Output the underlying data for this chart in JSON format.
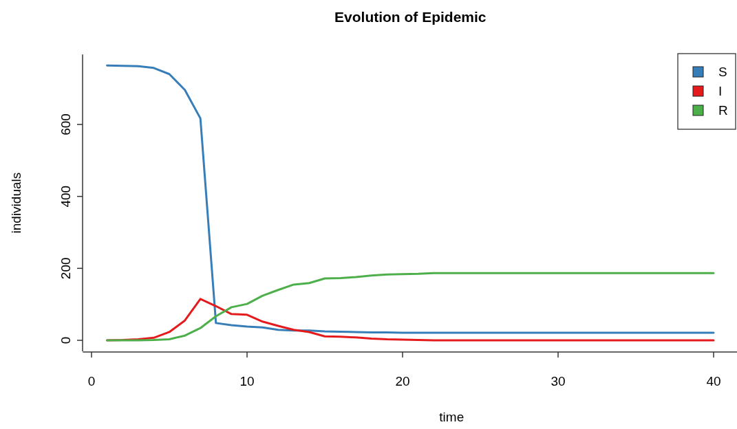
{
  "chart_data": {
    "type": "line",
    "title": "Evolution of Epidemic",
    "xlabel": "time",
    "ylabel": "individuals",
    "x": [
      1,
      2,
      3,
      4,
      5,
      6,
      7,
      8,
      9,
      10,
      11,
      12,
      13,
      14,
      15,
      16,
      17,
      18,
      19,
      20,
      21,
      22,
      23,
      24,
      25,
      26,
      27,
      28,
      29,
      30,
      31,
      32,
      33,
      34,
      35,
      36,
      37,
      38,
      39,
      40
    ],
    "series": [
      {
        "name": "S",
        "color": "#377eb8",
        "values": [
          764,
          763,
          762,
          757,
          740,
          696,
          617,
          48,
          42,
          38,
          36,
          29,
          27,
          27,
          25,
          24,
          23,
          22,
          22,
          21,
          21,
          21,
          21,
          21,
          21,
          21,
          21,
          21,
          21,
          21,
          21,
          21,
          21,
          21,
          21,
          21,
          21,
          21,
          21,
          21
        ]
      },
      {
        "name": "I",
        "color": "#e41a1c",
        "values": [
          0,
          1,
          3,
          7,
          23,
          55,
          115,
          95,
          73,
          71,
          52,
          40,
          29,
          23,
          11,
          10,
          8,
          5,
          3,
          2,
          1,
          0,
          0,
          0,
          0,
          0,
          0,
          0,
          0,
          0,
          0,
          0,
          0,
          0,
          0,
          0,
          0,
          0,
          0,
          0
        ]
      },
      {
        "name": "R",
        "color": "#4daf4a",
        "values": [
          0,
          0,
          0,
          1,
          3,
          13,
          34,
          67,
          92,
          101,
          124,
          140,
          155,
          159,
          172,
          173,
          176,
          180,
          183,
          184,
          185,
          187,
          187,
          187,
          187,
          187,
          187,
          187,
          187,
          187,
          187,
          187,
          187,
          187,
          187,
          187,
          187,
          187,
          187,
          187
        ]
      }
    ],
    "xlim": [
      -0.56,
      41.56
    ],
    "ylim": [
      -30.6,
      794.6
    ],
    "xticks": [
      0,
      10,
      20,
      30,
      40
    ],
    "yticks": [
      0,
      200,
      400,
      600
    ],
    "legend": "top right",
    "grid": false,
    "line_style": "solid",
    "marker": "none"
  }
}
